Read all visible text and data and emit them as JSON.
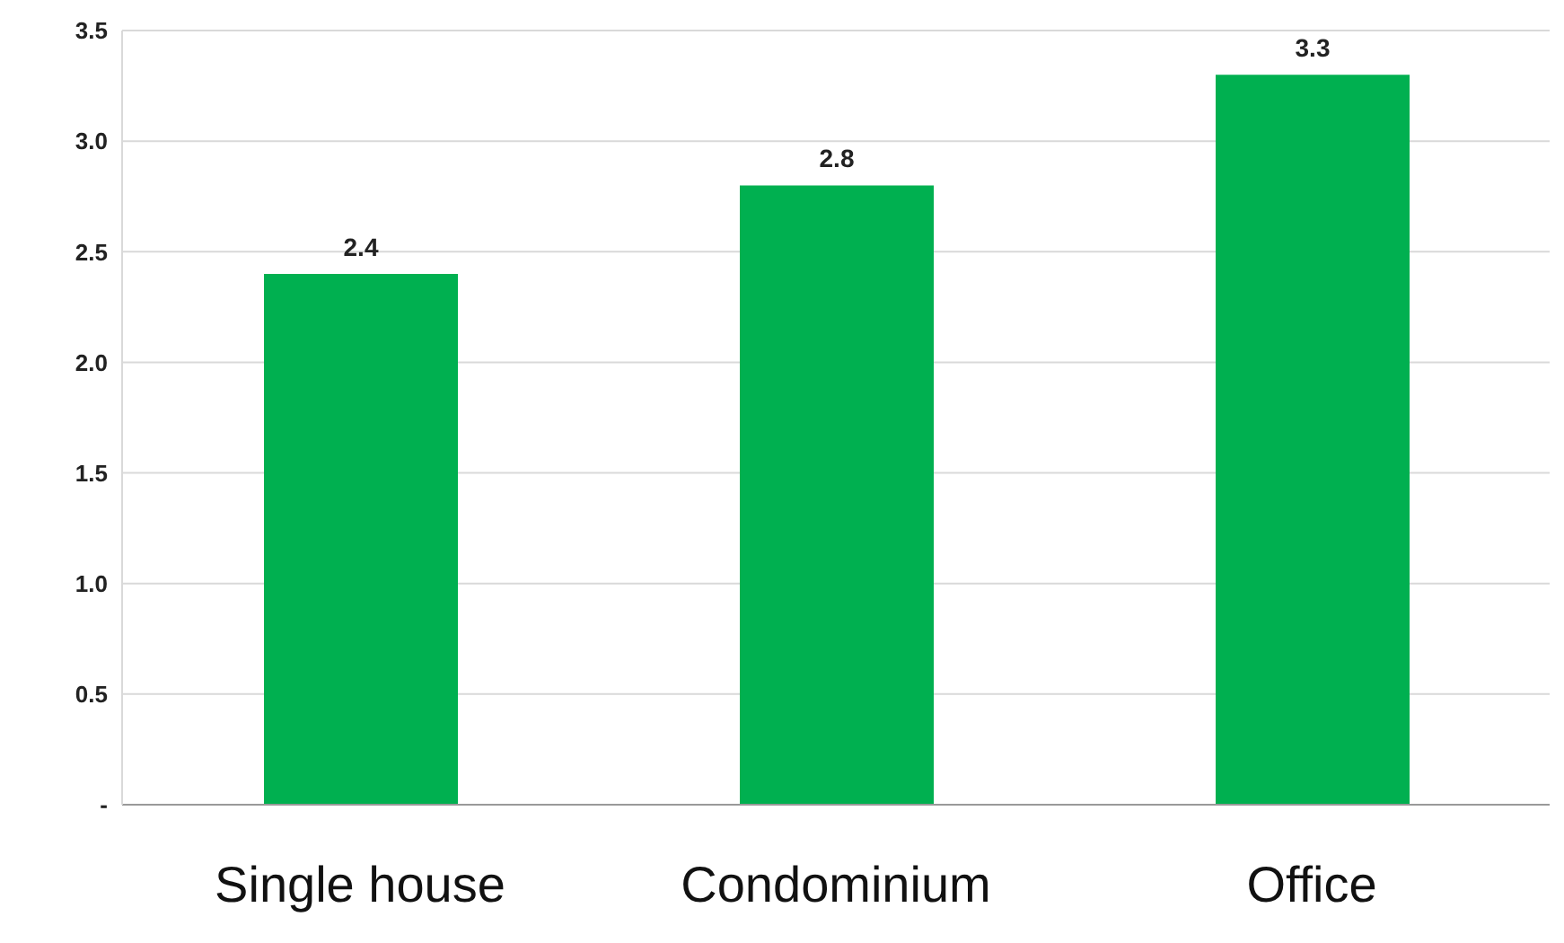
{
  "chart_data": {
    "type": "bar",
    "categories": [
      "Single house",
      "Condominium",
      "Office"
    ],
    "values": [
      2.4,
      2.8,
      3.3
    ],
    "color": "#00b050",
    "ylim": [
      0,
      3.5
    ],
    "yticks": [
      {
        "value": 0,
        "label": "-"
      },
      {
        "value": 0.5,
        "label": "0.5"
      },
      {
        "value": 1,
        "label": "1.0"
      },
      {
        "value": 1.5,
        "label": "1.5"
      },
      {
        "value": 2,
        "label": "2.0"
      },
      {
        "value": 2.5,
        "label": "2.5"
      },
      {
        "value": 3,
        "label": "3.0"
      },
      {
        "value": 3.5,
        "label": "3.5"
      }
    ],
    "grid": "y",
    "data_labels": true
  }
}
